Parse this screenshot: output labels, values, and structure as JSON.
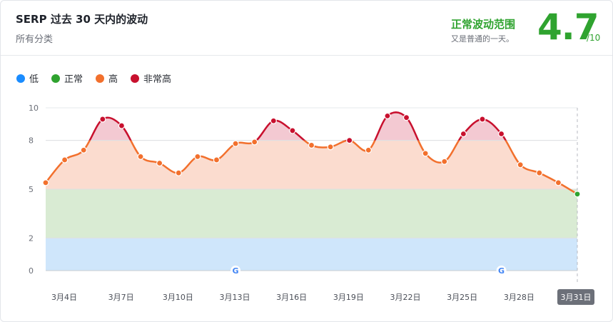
{
  "header": {
    "title": "SERP 过去 30 天内的波动",
    "subtitle": "所有分类",
    "status_label": "正常波动范围",
    "status_desc": "又是普通的一天。",
    "score": "4.7",
    "score_max": "/10"
  },
  "colors": {
    "low": "#1a8cff",
    "normal": "#2fa32f",
    "high": "#f2702d",
    "very_high": "#c8102e"
  },
  "legend": [
    {
      "label": "低",
      "color": "#1a8cff"
    },
    {
      "label": "正常",
      "color": "#2fa32f"
    },
    {
      "label": "高",
      "color": "#f2702d"
    },
    {
      "label": "非常高",
      "color": "#c8102e"
    }
  ],
  "chart_data": {
    "type": "area",
    "bands": [
      {
        "name": "低",
        "from": 0,
        "to": 2,
        "color": "#cfe6fb"
      },
      {
        "name": "正常",
        "from": 2,
        "to": 5,
        "color": "#d9ebd3"
      },
      {
        "name": "高",
        "from": 5,
        "to": 8,
        "color": "#fbdccf"
      },
      {
        "name": "非常高",
        "from": 8,
        "to": 10,
        "color": "#f3c9d2"
      }
    ],
    "ylim": [
      0,
      10
    ],
    "yticks": [
      0,
      2,
      5,
      8,
      10
    ],
    "x_tick_labels": [
      "3月4日",
      "3月7日",
      "3月10日",
      "3月13日",
      "3月16日",
      "3月19日",
      "3月22日",
      "3月25日",
      "3月28日",
      "3月31日"
    ],
    "active_x_label": "3月31日",
    "points": [
      {
        "x": 1,
        "y": 5.4
      },
      {
        "x": 2,
        "y": 6.8
      },
      {
        "x": 3,
        "y": 7.4
      },
      {
        "x": 4,
        "y": 9.3
      },
      {
        "x": 5,
        "y": 8.9
      },
      {
        "x": 6,
        "y": 7.0
      },
      {
        "x": 7,
        "y": 6.6
      },
      {
        "x": 8,
        "y": 6.0
      },
      {
        "x": 9,
        "y": 7.0
      },
      {
        "x": 10,
        "y": 6.8
      },
      {
        "x": 11,
        "y": 7.8
      },
      {
        "x": 12,
        "y": 7.9
      },
      {
        "x": 13,
        "y": 9.2
      },
      {
        "x": 14,
        "y": 8.6
      },
      {
        "x": 15,
        "y": 7.7
      },
      {
        "x": 16,
        "y": 7.6
      },
      {
        "x": 17,
        "y": 8.0
      },
      {
        "x": 18,
        "y": 7.4
      },
      {
        "x": 19,
        "y": 9.5
      },
      {
        "x": 20,
        "y": 9.4
      },
      {
        "x": 21,
        "y": 7.2
      },
      {
        "x": 22,
        "y": 6.7
      },
      {
        "x": 23,
        "y": 8.4
      },
      {
        "x": 24,
        "y": 9.3
      },
      {
        "x": 25,
        "y": 8.4
      },
      {
        "x": 26,
        "y": 6.5
      },
      {
        "x": 27,
        "y": 6.0
      },
      {
        "x": 28,
        "y": 5.4
      },
      {
        "x": 29,
        "y": 4.7
      }
    ],
    "markers": [
      {
        "x": 11,
        "name": "google-update-icon"
      },
      {
        "x": 25,
        "name": "google-update-icon"
      }
    ]
  }
}
